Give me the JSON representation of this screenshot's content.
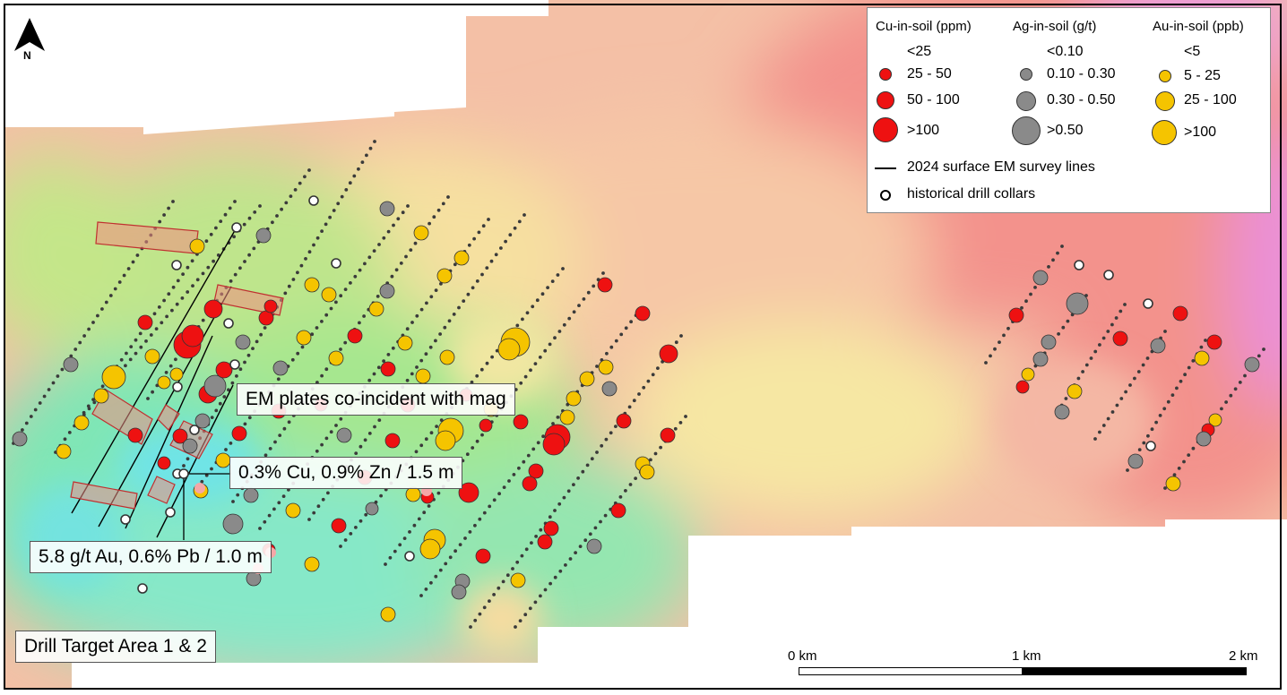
{
  "map": {
    "north_label": "N",
    "callouts": {
      "em_plates": "EM plates co-incident with mag",
      "cu_zn": "0.3% Cu, 0.9% Zn / 1.5 m",
      "au_pb": "5.8 g/t Au, 0.6% Pb / 1.0 m",
      "area_label": "Drill Target Area 1 & 2"
    },
    "colors": {
      "cu": "#ee1111",
      "ag": "#8a8a8a",
      "au": "#f5c400",
      "low_anomaly": "#66e6e0",
      "high_anomaly": "#f08a8a"
    }
  },
  "legend": {
    "cu": {
      "title": "Cu-in-soil (ppm)",
      "classes": [
        "<25",
        "25 - 50",
        "50 - 100",
        ">100"
      ]
    },
    "ag": {
      "title": "Ag-in-soil (g/t)",
      "classes": [
        "<0.10",
        "0.10 - 0.30",
        "0.30 - 0.50",
        ">0.50"
      ]
    },
    "au": {
      "title": "Au-in-soil (ppb)",
      "classes": [
        "<5",
        "5 - 25",
        "25 - 100",
        ">100"
      ]
    },
    "em_lines": "2024 surface EM survey lines",
    "drill_collars": "historical drill collars"
  },
  "scale_bar": {
    "labels": [
      "0 km",
      "1 km",
      "2 km"
    ]
  }
}
